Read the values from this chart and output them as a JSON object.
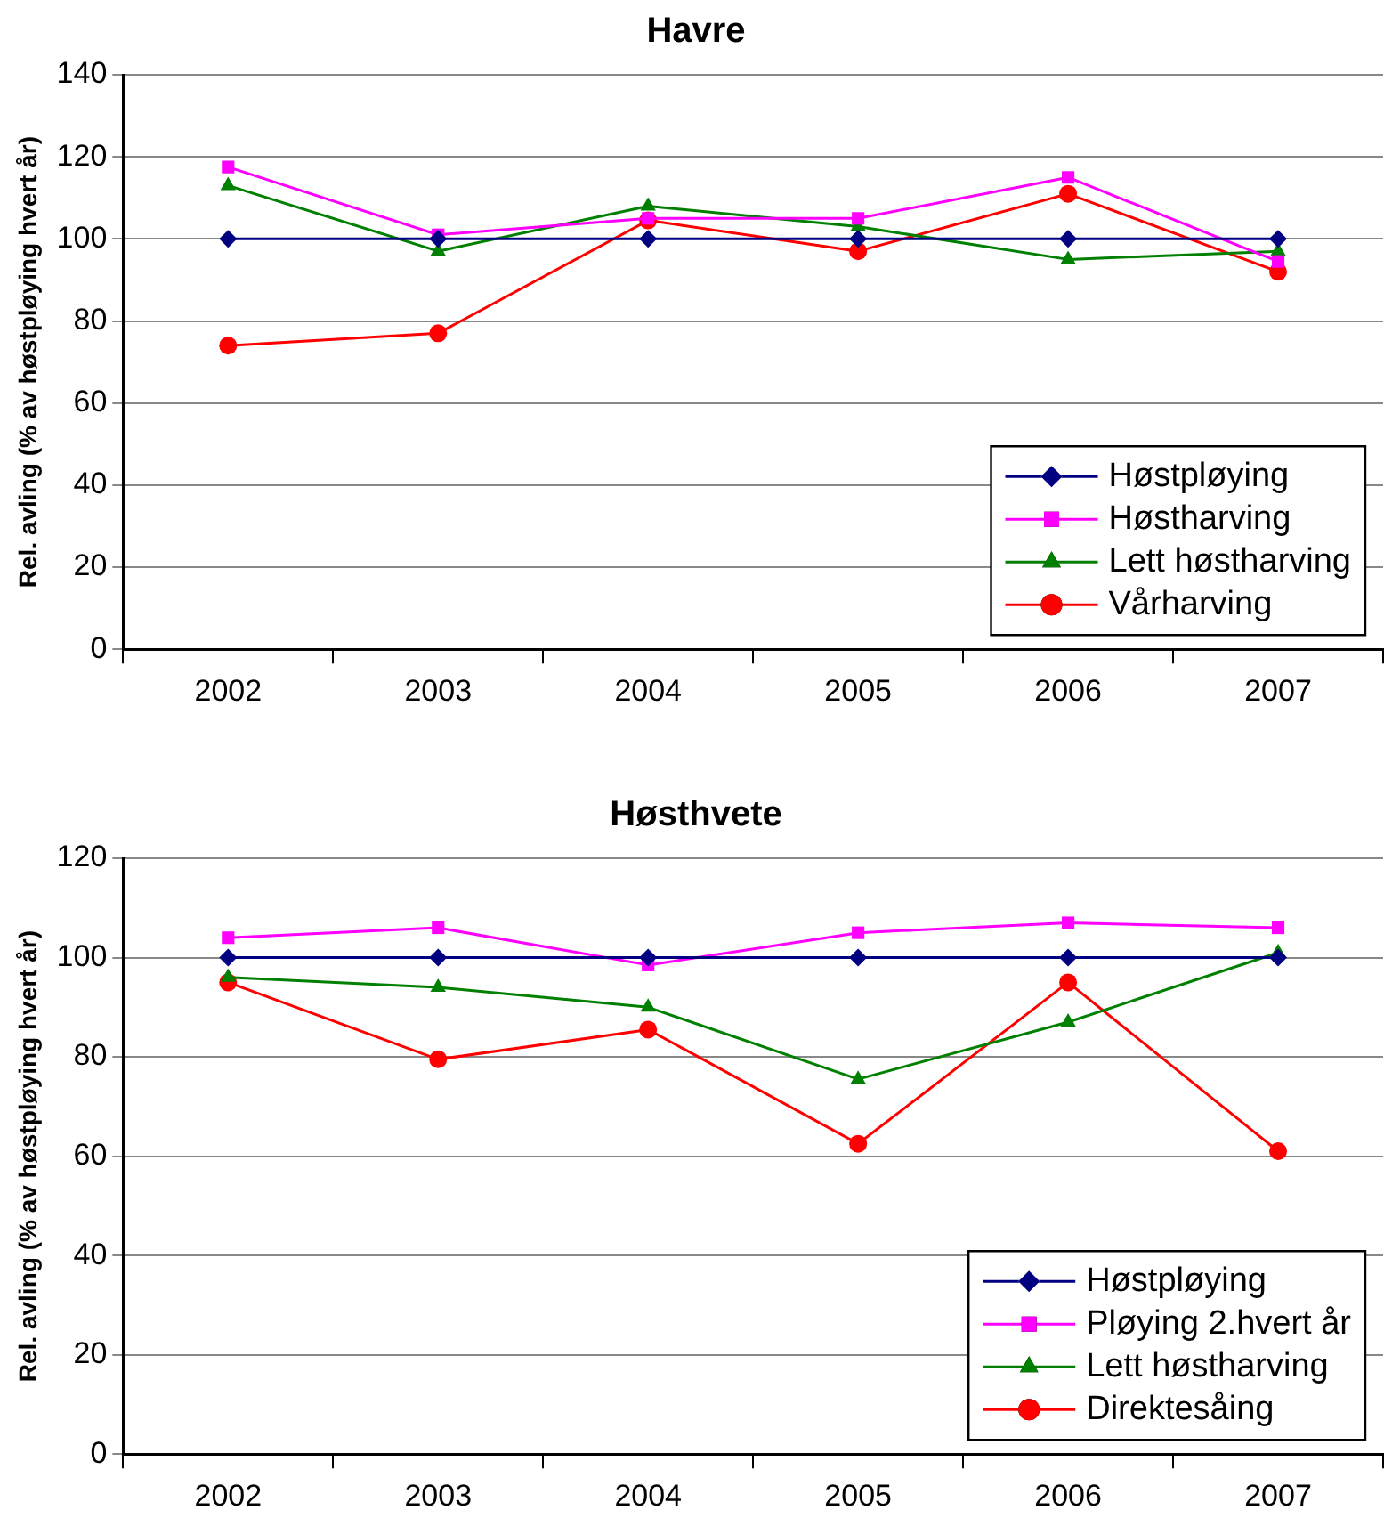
{
  "chart_data": [
    {
      "type": "line",
      "title": "Havre",
      "ylabel": "Rel. avling (% av høstpløying hvert år)",
      "categories": [
        "2002",
        "2003",
        "2004",
        "2005",
        "2006",
        "2007"
      ],
      "ylim": [
        0,
        140
      ],
      "yticks": [
        0,
        20,
        40,
        60,
        80,
        100,
        120,
        140
      ],
      "grid": "y",
      "legend": "bottom right",
      "series": [
        {
          "name": "Høstpløying",
          "color": "#000080",
          "marker": "diamond",
          "values": [
            100,
            100,
            100,
            100,
            100,
            100
          ]
        },
        {
          "name": "Høstharving",
          "color": "#ff00ff",
          "marker": "square",
          "values": [
            117.5,
            101,
            105,
            105,
            115,
            94.5
          ]
        },
        {
          "name": "Lett høstharving",
          "color": "#008000",
          "marker": "triangle",
          "values": [
            113,
            97,
            108,
            103,
            95,
            97
          ]
        },
        {
          "name": "Vårharving",
          "color": "#ff0000",
          "marker": "circle",
          "values": [
            74,
            77,
            104.5,
            97,
            111,
            92
          ]
        }
      ]
    },
    {
      "type": "line",
      "title": "Høsthvete",
      "ylabel": "Rel. avling (% av høstpløying hvert år)",
      "categories": [
        "2002",
        "2003",
        "2004",
        "2005",
        "2006",
        "2007"
      ],
      "ylim": [
        0,
        120
      ],
      "yticks": [
        0,
        20,
        40,
        60,
        80,
        100,
        120
      ],
      "grid": "y",
      "legend": "bottom right",
      "series": [
        {
          "name": "Høstpløying",
          "color": "#000080",
          "marker": "diamond",
          "values": [
            100,
            100,
            100,
            100,
            100,
            100
          ]
        },
        {
          "name": "Pløying 2.hvert år",
          "color": "#ff00ff",
          "marker": "square",
          "values": [
            104,
            106,
            98.5,
            105,
            107,
            106
          ]
        },
        {
          "name": "Lett høstharving",
          "color": "#008000",
          "marker": "triangle",
          "values": [
            96,
            94,
            90,
            75.5,
            87,
            101
          ]
        },
        {
          "name": "Direktesåing",
          "color": "#ff0000",
          "marker": "circle",
          "values": [
            95,
            79.5,
            85.5,
            62.5,
            95,
            61
          ]
        }
      ]
    }
  ]
}
